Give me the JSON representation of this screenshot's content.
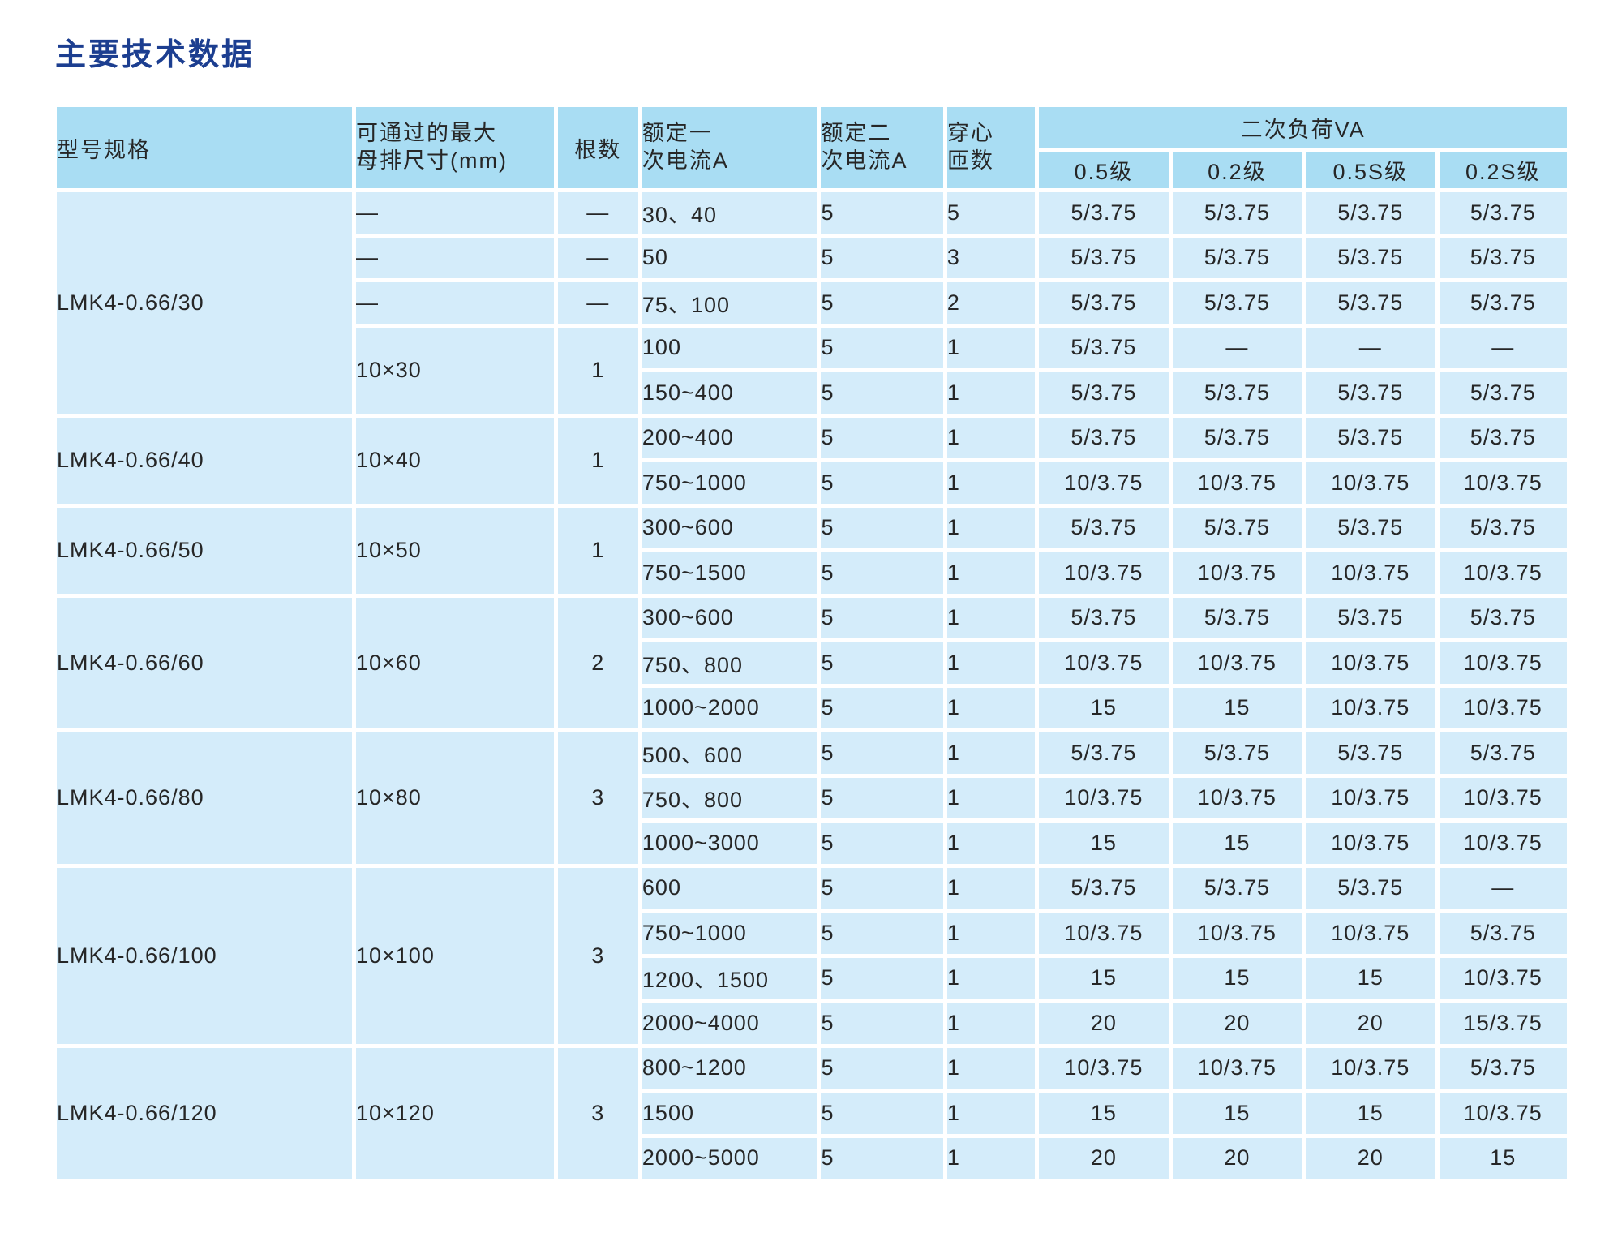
{
  "page": {
    "title": "主要技术数据"
  },
  "colors": {
    "title_color": "#1c3e90",
    "header_bg": "#a9ddf3",
    "row_bg": "#d4ecfa",
    "grid_color": "#ffffff",
    "text_color": "#262626"
  },
  "table": {
    "headers": {
      "model": "型号规格",
      "busbar": "可通过的最大\n母排尺寸(mm)",
      "bars": "根数",
      "primary": "额定一\n次电流A",
      "secondary": "额定二\n次电流A",
      "turns": "穿心\n匝数",
      "burden": "二次负荷VA",
      "classes": [
        "0.5级",
        "0.2级",
        "0.5S级",
        "0.2S级"
      ]
    },
    "groups": [
      {
        "model": "LMK4-0.66/30",
        "subgroups": [
          {
            "busbar": "—",
            "bars": "—",
            "rows": [
              {
                "primary": "30、40",
                "secondary": "5",
                "turns": "5",
                "burden": [
                  "5/3.75",
                  "5/3.75",
                  "5/3.75",
                  "5/3.75"
                ]
              }
            ]
          },
          {
            "busbar": "—",
            "bars": "—",
            "rows": [
              {
                "primary": "50",
                "secondary": "5",
                "turns": "3",
                "burden": [
                  "5/3.75",
                  "5/3.75",
                  "5/3.75",
                  "5/3.75"
                ]
              }
            ]
          },
          {
            "busbar": "—",
            "bars": "—",
            "rows": [
              {
                "primary": "75、100",
                "secondary": "5",
                "turns": "2",
                "burden": [
                  "5/3.75",
                  "5/3.75",
                  "5/3.75",
                  "5/3.75"
                ]
              }
            ]
          },
          {
            "busbar": "10×30",
            "bars": "1",
            "rows": [
              {
                "primary": "100",
                "secondary": "5",
                "turns": "1",
                "burden": [
                  "5/3.75",
                  "—",
                  "—",
                  "—"
                ]
              },
              {
                "primary": "150~400",
                "secondary": "5",
                "turns": "1",
                "burden": [
                  "5/3.75",
                  "5/3.75",
                  "5/3.75",
                  "5/3.75"
                ]
              }
            ]
          }
        ]
      },
      {
        "model": "LMK4-0.66/40",
        "subgroups": [
          {
            "busbar": "10×40",
            "bars": "1",
            "rows": [
              {
                "primary": "200~400",
                "secondary": "5",
                "turns": "1",
                "burden": [
                  "5/3.75",
                  "5/3.75",
                  "5/3.75",
                  "5/3.75"
                ]
              },
              {
                "primary": "750~1000",
                "secondary": "5",
                "turns": "1",
                "burden": [
                  "10/3.75",
                  "10/3.75",
                  "10/3.75",
                  "10/3.75"
                ]
              }
            ]
          }
        ]
      },
      {
        "model": "LMK4-0.66/50",
        "subgroups": [
          {
            "busbar": "10×50",
            "bars": "1",
            "rows": [
              {
                "primary": "300~600",
                "secondary": "5",
                "turns": "1",
                "burden": [
                  "5/3.75",
                  "5/3.75",
                  "5/3.75",
                  "5/3.75"
                ]
              },
              {
                "primary": "750~1500",
                "secondary": "5",
                "turns": "1",
                "burden": [
                  "10/3.75",
                  "10/3.75",
                  "10/3.75",
                  "10/3.75"
                ]
              }
            ]
          }
        ]
      },
      {
        "model": "LMK4-0.66/60",
        "subgroups": [
          {
            "busbar": "10×60",
            "bars": "2",
            "rows": [
              {
                "primary": "300~600",
                "secondary": "5",
                "turns": "1",
                "burden": [
                  "5/3.75",
                  "5/3.75",
                  "5/3.75",
                  "5/3.75"
                ]
              },
              {
                "primary": "750、800",
                "secondary": "5",
                "turns": "1",
                "burden": [
                  "10/3.75",
                  "10/3.75",
                  "10/3.75",
                  "10/3.75"
                ]
              },
              {
                "primary": "1000~2000",
                "secondary": "5",
                "turns": "1",
                "burden": [
                  "15",
                  "15",
                  "10/3.75",
                  "10/3.75"
                ]
              }
            ]
          }
        ]
      },
      {
        "model": "LMK4-0.66/80",
        "subgroups": [
          {
            "busbar": "10×80",
            "bars": "3",
            "rows": [
              {
                "primary": "500、600",
                "secondary": "5",
                "turns": "1",
                "burden": [
                  "5/3.75",
                  "5/3.75",
                  "5/3.75",
                  "5/3.75"
                ]
              },
              {
                "primary": "750、800",
                "secondary": "5",
                "turns": "1",
                "burden": [
                  "10/3.75",
                  "10/3.75",
                  "10/3.75",
                  "10/3.75"
                ]
              },
              {
                "primary": "1000~3000",
                "secondary": "5",
                "turns": "1",
                "burden": [
                  "15",
                  "15",
                  "10/3.75",
                  "10/3.75"
                ]
              }
            ]
          }
        ]
      },
      {
        "model": "LMK4-0.66/100",
        "subgroups": [
          {
            "busbar": "10×100",
            "bars": "3",
            "rows": [
              {
                "primary": "600",
                "secondary": "5",
                "turns": "1",
                "burden": [
                  "5/3.75",
                  "5/3.75",
                  "5/3.75",
                  "—"
                ]
              },
              {
                "primary": "750~1000",
                "secondary": "5",
                "turns": "1",
                "burden": [
                  "10/3.75",
                  "10/3.75",
                  "10/3.75",
                  "5/3.75"
                ]
              },
              {
                "primary": "1200、1500",
                "secondary": "5",
                "turns": "1",
                "burden": [
                  "15",
                  "15",
                  "15",
                  "10/3.75"
                ]
              },
              {
                "primary": "2000~4000",
                "secondary": "5",
                "turns": "1",
                "burden": [
                  "20",
                  "20",
                  "20",
                  "15/3.75"
                ]
              }
            ]
          }
        ]
      },
      {
        "model": "LMK4-0.66/120",
        "subgroups": [
          {
            "busbar": "10×120",
            "bars": "3",
            "rows": [
              {
                "primary": "800~1200",
                "secondary": "5",
                "turns": "1",
                "burden": [
                  "10/3.75",
                  "10/3.75",
                  "10/3.75",
                  "5/3.75"
                ]
              },
              {
                "primary": "1500",
                "secondary": "5",
                "turns": "1",
                "burden": [
                  "15",
                  "15",
                  "15",
                  "10/3.75"
                ]
              },
              {
                "primary": "2000~5000",
                "secondary": "5",
                "turns": "1",
                "burden": [
                  "20",
                  "20",
                  "20",
                  "15"
                ]
              }
            ]
          }
        ]
      }
    ]
  }
}
